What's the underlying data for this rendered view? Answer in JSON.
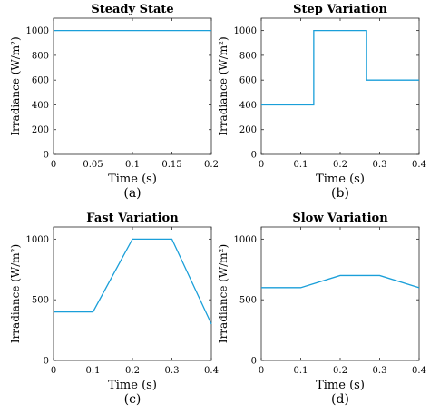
{
  "chart_data": [
    {
      "type": "line",
      "title": "Steady State",
      "xlabel": "Time (s)",
      "ylabel": "Irradiance (W/m²)",
      "panel_label": "(a)",
      "xlim": [
        0,
        0.2
      ],
      "ylim": [
        0,
        1100
      ],
      "xticks": [
        0,
        0.05,
        0.1,
        0.15,
        0.2
      ],
      "xtick_labels": [
        "0",
        "0.05",
        "0.1",
        "0.15",
        "0.2"
      ],
      "yticks": [
        0,
        200,
        400,
        600,
        800,
        1000
      ],
      "ytick_labels": [
        "0",
        "200",
        "400",
        "600",
        "800",
        "1000"
      ],
      "series": [
        {
          "x": [
            0,
            0.2
          ],
          "y": [
            1000,
            1000
          ]
        }
      ]
    },
    {
      "type": "line",
      "title": "Step Variation",
      "xlabel": "Time (s)",
      "ylabel": "Irradiance (W/m²)",
      "panel_label": "(b)",
      "xlim": [
        0,
        0.4
      ],
      "ylim": [
        0,
        1100
      ],
      "xticks": [
        0,
        0.1,
        0.2,
        0.3,
        0.4
      ],
      "xtick_labels": [
        "0",
        "0.1",
        "0.2",
        "0.3",
        "0.4"
      ],
      "yticks": [
        0,
        200,
        400,
        600,
        800,
        1000
      ],
      "ytick_labels": [
        "0",
        "200",
        "400",
        "600",
        "800",
        "1000"
      ],
      "series": [
        {
          "x": [
            0,
            0.133,
            0.133,
            0.267,
            0.267,
            0.4
          ],
          "y": [
            400,
            400,
            1000,
            1000,
            600,
            600
          ]
        }
      ]
    },
    {
      "type": "line",
      "title": "Fast Variation",
      "xlabel": "Time (s)",
      "ylabel": "Irradiance (W/m²)",
      "panel_label": "(c)",
      "xlim": [
        0,
        0.4
      ],
      "ylim": [
        0,
        1100
      ],
      "xticks": [
        0,
        0.1,
        0.2,
        0.3,
        0.4
      ],
      "xtick_labels": [
        "0",
        "0.1",
        "0.2",
        "0.3",
        "0.4"
      ],
      "yticks": [
        0,
        500,
        1000
      ],
      "ytick_labels": [
        "0",
        "500",
        "1000"
      ],
      "series": [
        {
          "x": [
            0,
            0.1,
            0.2,
            0.3,
            0.4
          ],
          "y": [
            400,
            400,
            1000,
            1000,
            300
          ]
        }
      ]
    },
    {
      "type": "line",
      "title": "Slow Variation",
      "xlabel": "Time (s)",
      "ylabel": "Irradiance (W/m²)",
      "panel_label": "(d)",
      "xlim": [
        0,
        0.4
      ],
      "ylim": [
        0,
        1100
      ],
      "xticks": [
        0,
        0.1,
        0.2,
        0.3,
        0.4
      ],
      "xtick_labels": [
        "0",
        "0.1",
        "0.2",
        "0.3",
        "0.4"
      ],
      "yticks": [
        0,
        500,
        1000
      ],
      "ytick_labels": [
        "0",
        "500",
        "1000"
      ],
      "series": [
        {
          "x": [
            0,
            0.1,
            0.2,
            0.3,
            0.4
          ],
          "y": [
            600,
            600,
            700,
            700,
            600
          ]
        }
      ]
    }
  ],
  "colors": {
    "series": "#1a9fd9",
    "axes": "#262626"
  }
}
